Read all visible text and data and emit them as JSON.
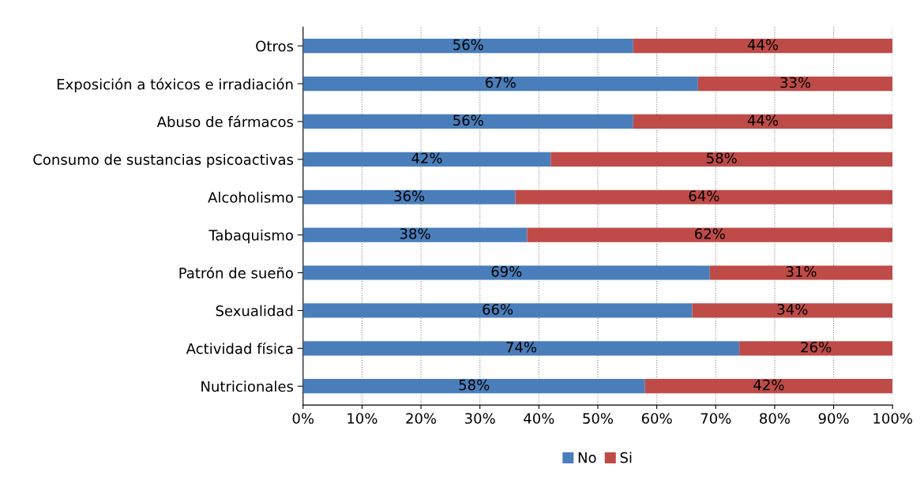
{
  "chart_data": {
    "type": "bar",
    "orientation": "horizontal",
    "stacked": true,
    "categories": [
      "Otros",
      "Exposición a tóxicos e irradiación",
      "Abuso de fármacos",
      "Consumo de sustancias psicoactivas",
      "Alcoholismo",
      "Tabaquismo",
      "Patrón de sueño",
      "Sexualidad",
      "Actividad física",
      "Nutricionales"
    ],
    "series": [
      {
        "name": "No",
        "color": "#4a7ebb",
        "values": [
          56,
          67,
          56,
          42,
          36,
          38,
          69,
          66,
          74,
          58
        ],
        "value_labels": [
          "56%",
          "67%",
          "56%",
          "42%",
          "36%",
          "38%",
          "69%",
          "66%",
          "74%",
          "58%"
        ]
      },
      {
        "name": "Si",
        "color": "#be4b48",
        "values": [
          44,
          33,
          44,
          58,
          64,
          62,
          31,
          34,
          26,
          42
        ],
        "value_labels": [
          "44%",
          "33%",
          "44%",
          "58%",
          "64%",
          "62%",
          "31%",
          "34%",
          "26%",
          "42%"
        ]
      }
    ],
    "xlim": [
      0,
      100
    ],
    "xticks": [
      {
        "value": 0,
        "label": "0%"
      },
      {
        "value": 10,
        "label": "10%"
      },
      {
        "value": 20,
        "label": "20%"
      },
      {
        "value": 30,
        "label": "30%"
      },
      {
        "value": 40,
        "label": "40%"
      },
      {
        "value": 50,
        "label": "50%"
      },
      {
        "value": 60,
        "label": "60%"
      },
      {
        "value": 70,
        "label": "70%"
      },
      {
        "value": 80,
        "label": "80%"
      },
      {
        "value": 90,
        "label": "90%"
      },
      {
        "value": 100,
        "label": "100%"
      }
    ],
    "grid": "x",
    "legend": "bottom"
  }
}
